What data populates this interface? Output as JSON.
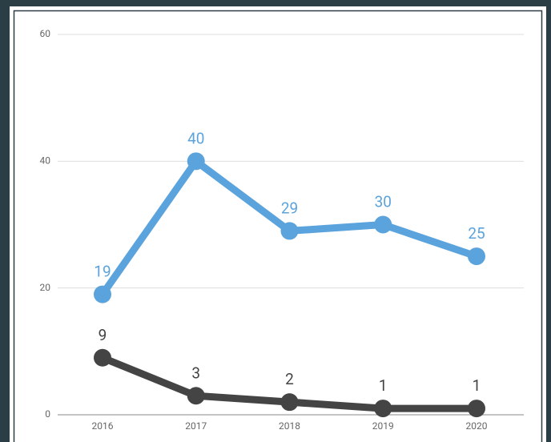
{
  "chart_data": {
    "type": "line",
    "categories": [
      "2016",
      "2017",
      "2018",
      "2019",
      "2020"
    ],
    "series": [
      {
        "color": "#5ba3dc",
        "values": [
          19,
          40,
          29,
          30,
          25
        ]
      },
      {
        "color": "#444444",
        "values": [
          9,
          3,
          2,
          1,
          1
        ]
      }
    ],
    "ylim": [
      0,
      60
    ],
    "yticks": [
      0,
      20,
      40,
      60
    ],
    "grid": true
  }
}
